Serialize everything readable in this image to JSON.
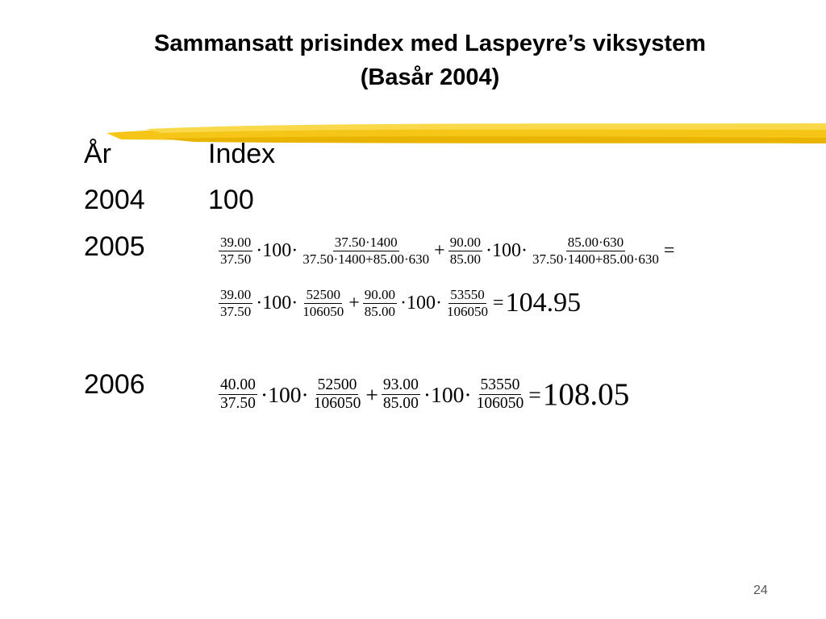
{
  "title": [
    "Sammansatt prisindex med Laspeyre’s viksystem",
    "(Basår 2004)"
  ],
  "table": {
    "header": [
      "År",
      "Index"
    ],
    "rows": [
      {
        "year": "2004",
        "index": "100"
      },
      {
        "year": "2005",
        "formula": [
          [
            {
              "num": "39.00",
              "den": "37.50"
            },
            "·100·",
            {
              "num": "37.50·1400",
              "den": "37.50·1400+85.00·630"
            },
            "+",
            {
              "num": "90.00",
              "den": "85.00"
            },
            "·100·",
            {
              "num": "85.00·630",
              "den": "37.50·1400+85.00·630"
            },
            "="
          ],
          [
            {
              "num": "39.00",
              "den": "37.50"
            },
            "·100·",
            {
              "num": "52500",
              "den": "106050"
            },
            "+",
            {
              "num": "90.00",
              "den": "85.00"
            },
            "·100·",
            {
              "num": "53550",
              "den": "106050"
            },
            "=",
            "104.95"
          ]
        ]
      },
      {
        "year": "2006",
        "formula": [
          [
            {
              "num": "40.00",
              "den": "37.50"
            },
            "·100·",
            {
              "num": "52500",
              "den": "106050"
            },
            "+",
            {
              "num": "93.00",
              "den": "85.00"
            },
            "·100·",
            {
              "num": "53550",
              "den": "106050"
            },
            "=",
            "108.05"
          ]
        ]
      }
    ]
  },
  "page_number": "24"
}
